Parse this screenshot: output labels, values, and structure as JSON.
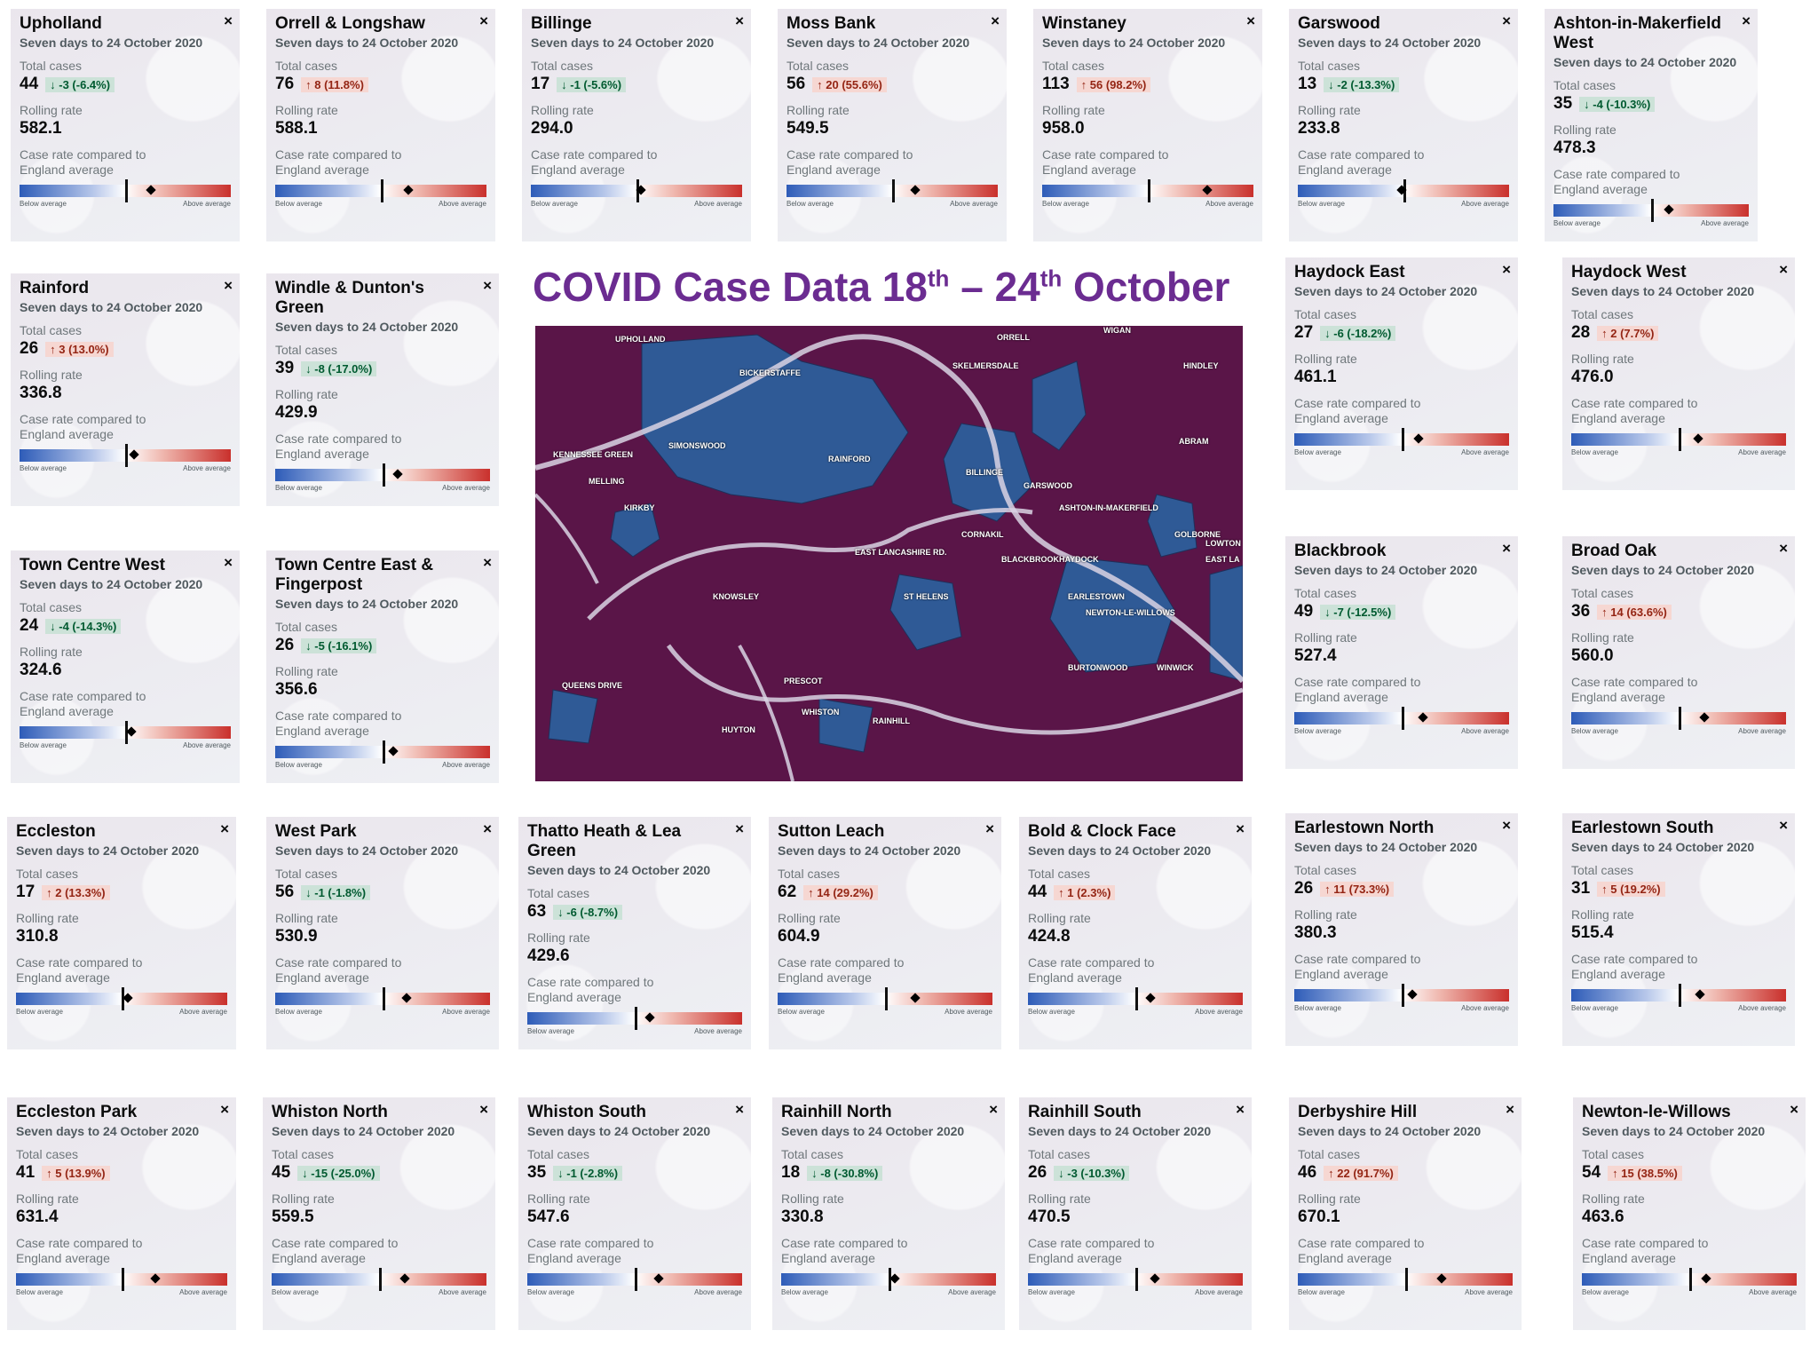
{
  "title": {
    "main": "COVID Case Data 18",
    "th1": "th",
    "dash": " – 24",
    "th2": "th",
    "tail": " October"
  },
  "common": {
    "period": "Seven days to 24 October 2020",
    "total_cases_label": "Total cases",
    "rolling_rate_label": "Rolling rate",
    "compare_line1": "Case rate compared to",
    "compare_line2": "England average",
    "below": "Below average",
    "above": "Above average",
    "close": "×"
  },
  "colors": {
    "title": "#6b2c91",
    "map_above": "#5a1548",
    "map_below": "#2f5a96",
    "up_badge": "#f6d7d2",
    "down_badge": "#cce2d8"
  },
  "map": {
    "labels": [
      "UPHOLLAND",
      "ORRELL",
      "WIGAN",
      "BICKERSTAFFE",
      "SKELMERSDALE",
      "HINDLEY",
      "KENNESSEE GREEN",
      "SIMONSWOOD",
      "RAINFORD",
      "ABRAM",
      "MELLING",
      "BILLINGE",
      "GARSWOOD",
      "KIRKBY",
      "ASHTON-IN-MAKERFIELD",
      "GOLBORNE",
      "EAST LANCASHIRE RD.",
      "CORNAKIL",
      "BLACKBROOK",
      "HAYDOCK",
      "ST HELENS",
      "EARLESTOWN",
      "NEWTON-LE-WILLOWS",
      "KNOWSLEY",
      "BURTONWOOD",
      "WINWICK",
      "PRESCOT",
      "WHISTON",
      "RAINHILL",
      "HUYTON",
      "QUEENS DRIVE",
      "LOWTON",
      "EAST LA"
    ]
  },
  "cards": [
    {
      "name": "Upholland",
      "cases": "44",
      "dir": "down",
      "change": "-3 (-6.4%)",
      "rate": "582.1",
      "marker": 0.62
    },
    {
      "name": "Orrell & Longshaw",
      "cases": "76",
      "dir": "up",
      "change": "8 (11.8%)",
      "rate": "588.1",
      "marker": 0.63
    },
    {
      "name": "Billinge",
      "cases": "17",
      "dir": "down",
      "change": "-1 (-5.6%)",
      "rate": "294.0",
      "marker": 0.52
    },
    {
      "name": "Moss Bank",
      "cases": "56",
      "dir": "up",
      "change": "20 (55.6%)",
      "rate": "549.5",
      "marker": 0.61
    },
    {
      "name": "Winstaney",
      "cases": "113",
      "dir": "up",
      "change": "56 (98.2%)",
      "rate": "958.0",
      "marker": 0.78
    },
    {
      "name": "Garswood",
      "cases": "13",
      "dir": "down",
      "change": "-2 (-13.3%)",
      "rate": "233.8",
      "marker": 0.49
    },
    {
      "name": "Ashton-in-Makerfield West",
      "cases": "35",
      "dir": "down",
      "change": "-4 (-10.3%)",
      "rate": "478.3",
      "marker": 0.59
    },
    {
      "name": "Rainford",
      "cases": "26",
      "dir": "up",
      "change": "3 (13.0%)",
      "rate": "336.8",
      "marker": 0.54
    },
    {
      "name": "Windle & Dunton's Green",
      "cases": "39",
      "dir": "down",
      "change": "-8 (-17.0%)",
      "rate": "429.9",
      "marker": 0.57
    },
    {
      "name": "Haydock East",
      "cases": "27",
      "dir": "down",
      "change": "-6 (-18.2%)",
      "rate": "461.1",
      "marker": 0.58
    },
    {
      "name": "Haydock West",
      "cases": "28",
      "dir": "up",
      "change": "2 (7.7%)",
      "rate": "476.0",
      "marker": 0.59
    },
    {
      "name": "Town Centre West",
      "cases": "24",
      "dir": "down",
      "change": "-4 (-14.3%)",
      "rate": "324.6",
      "marker": 0.53
    },
    {
      "name": "Town Centre East & Fingerpost",
      "cases": "26",
      "dir": "down",
      "change": "-5 (-16.1%)",
      "rate": "356.6",
      "marker": 0.55
    },
    {
      "name": "Blackbrook",
      "cases": "49",
      "dir": "down",
      "change": "-7 (-12.5%)",
      "rate": "527.4",
      "marker": 0.6
    },
    {
      "name": "Broad Oak",
      "cases": "36",
      "dir": "up",
      "change": "14 (63.6%)",
      "rate": "560.0",
      "marker": 0.62
    },
    {
      "name": "Eccleston",
      "cases": "17",
      "dir": "up",
      "change": "2 (13.3%)",
      "rate": "310.8",
      "marker": 0.53
    },
    {
      "name": "West Park",
      "cases": "56",
      "dir": "down",
      "change": "-1 (-1.8%)",
      "rate": "530.9",
      "marker": 0.61
    },
    {
      "name": "Thatto Heath & Lea Green",
      "cases": "63",
      "dir": "down",
      "change": "-6 (-8.7%)",
      "rate": "429.6",
      "marker": 0.57
    },
    {
      "name": "Sutton Leach",
      "cases": "62",
      "dir": "up",
      "change": "14 (29.2%)",
      "rate": "604.9",
      "marker": 0.64
    },
    {
      "name": "Bold & Clock Face",
      "cases": "44",
      "dir": "up",
      "change": "1 (2.3%)",
      "rate": "424.8",
      "marker": 0.57
    },
    {
      "name": "Earlestown North",
      "cases": "26",
      "dir": "up",
      "change": "11 (73.3%)",
      "rate": "380.3",
      "marker": 0.55
    },
    {
      "name": "Earlestown South",
      "cases": "31",
      "dir": "up",
      "change": "5 (19.2%)",
      "rate": "515.4",
      "marker": 0.6
    },
    {
      "name": "Eccleston Park",
      "cases": "41",
      "dir": "up",
      "change": "5 (13.9%)",
      "rate": "631.4",
      "marker": 0.66
    },
    {
      "name": "Whiston North",
      "cases": "45",
      "dir": "down",
      "change": "-15 (-25.0%)",
      "rate": "559.5",
      "marker": 0.62
    },
    {
      "name": "Whiston South",
      "cases": "35",
      "dir": "down",
      "change": "-1 (-2.8%)",
      "rate": "547.6",
      "marker": 0.61
    },
    {
      "name": "Rainhill North",
      "cases": "18",
      "dir": "down",
      "change": "-8 (-30.8%)",
      "rate": "330.8",
      "marker": 0.53
    },
    {
      "name": "Rainhill South",
      "cases": "26",
      "dir": "down",
      "change": "-3 (-10.3%)",
      "rate": "470.5",
      "marker": 0.59
    },
    {
      "name": "Derbyshire Hill",
      "cases": "46",
      "dir": "up",
      "change": "22 (91.7%)",
      "rate": "670.1",
      "marker": 0.67
    },
    {
      "name": "Newton-le-Willows",
      "cases": "54",
      "dir": "up",
      "change": "15 (38.5%)",
      "rate": "463.6",
      "marker": 0.58
    }
  ]
}
